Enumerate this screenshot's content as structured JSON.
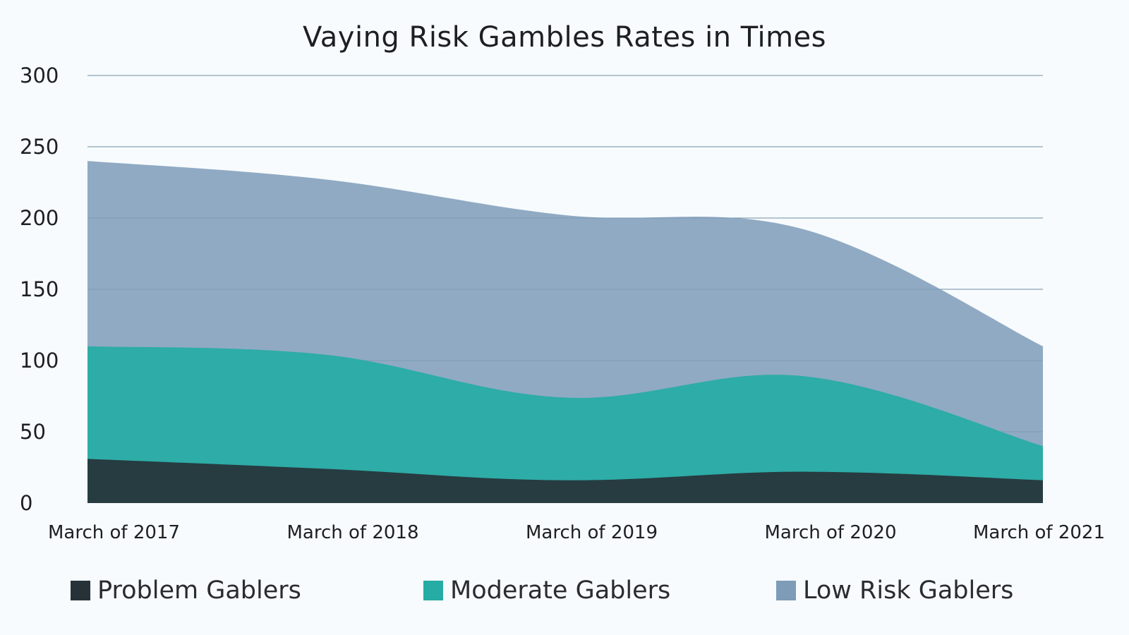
{
  "chart_data": {
    "type": "area",
    "stacked": true,
    "title": "Vaying Risk Gambles Rates in Times",
    "categories": [
      "March of 2017",
      "March of 2018",
      "March of 2019",
      "March of 2020",
      "March of 2021"
    ],
    "ylim": [
      0,
      300
    ],
    "yticks": [
      0,
      50,
      100,
      150,
      200,
      250,
      300
    ],
    "grid": true,
    "legend_position": "bottom",
    "series": [
      {
        "name": "Problem Gablers",
        "color": "#263238",
        "values": [
          31,
          24,
          16,
          22,
          16
        ]
      },
      {
        "name": "Moderate Gablers",
        "color": "#26aca5",
        "values": [
          79,
          80,
          58,
          67,
          24
        ]
      },
      {
        "name": "Low Risk Gablers",
        "color": "#7e9bb8",
        "values": [
          130,
          123,
          128,
          103,
          70
        ]
      }
    ]
  }
}
